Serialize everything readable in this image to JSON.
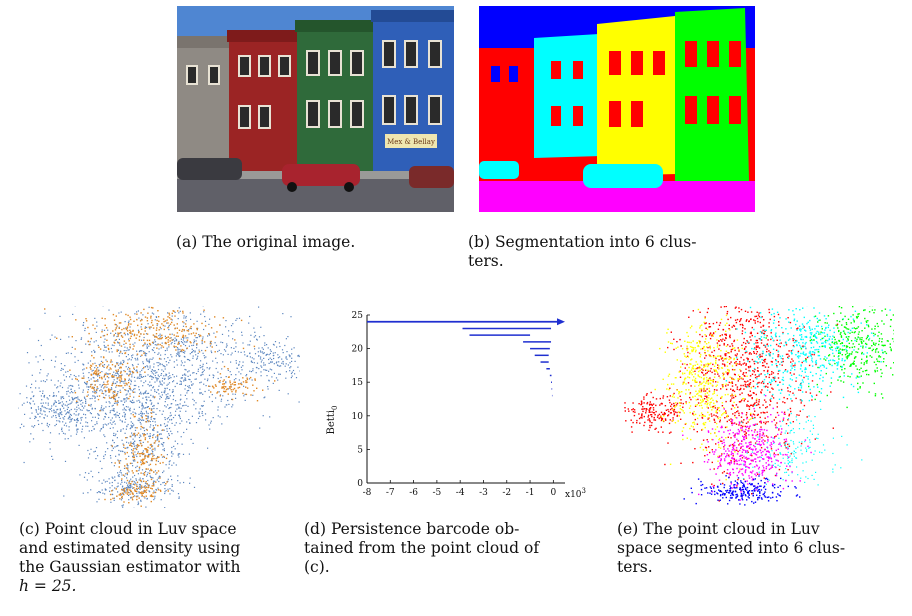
{
  "captions": {
    "a": "(a) The original image.",
    "b_line1": "(b) Segmentation into 6 clus-",
    "b_line2": "ters.",
    "c_lines": [
      "(c) Point cloud in Luv space",
      "and estimated density using",
      "the Gaussian estimator with"
    ],
    "c_math": "h = 25.",
    "d_lines": [
      "(d) Persistence barcode ob-",
      "tained from the point cloud of",
      "(c)."
    ],
    "e_lines": [
      "(e) The point cloud in Luv",
      "space segmented into 6 clus-",
      "ters."
    ]
  },
  "photo": {
    "sign_text": "Mex & Bellay"
  },
  "colors": {
    "cloud_blue": "#5b86bf",
    "cloud_orange": "#e08a28",
    "barcode": "#1f2fd0",
    "seg_red": "#ff0000",
    "seg_cyan": "#00ffff",
    "seg_yellow": "#ffff00",
    "seg_green": "#00ff00",
    "seg_magenta": "#ff00ff",
    "seg_blue": "#0000ff"
  },
  "chart_data": {
    "type": "bar",
    "orientation": "horizontal",
    "ylabel": "Betti",
    "ylabel_sub": "0",
    "xunit": "x10",
    "xunit_exp": "3",
    "xlim": [
      -8,
      0.5
    ],
    "ylim": [
      0,
      25
    ],
    "xticks": [
      "-8",
      "-7",
      "-6",
      "-5",
      "-4",
      "-3",
      "-2",
      "-1",
      "0"
    ],
    "yticks": [
      "0",
      "5",
      "10",
      "15",
      "20",
      "25"
    ],
    "bars": [
      {
        "index": 24,
        "start": -8.0,
        "end": 0.5,
        "infinite": true
      },
      {
        "index": 23,
        "start": -3.9,
        "end": -0.1
      },
      {
        "index": 22,
        "start": -3.6,
        "end": -1.0
      },
      {
        "index": 21,
        "start": -1.3,
        "end": -0.1
      },
      {
        "index": 20,
        "start": -1.0,
        "end": -0.15
      },
      {
        "index": 19,
        "start": -0.8,
        "end": -0.2
      },
      {
        "index": 18,
        "start": -0.55,
        "end": -0.2
      },
      {
        "index": 17,
        "start": -0.3,
        "end": -0.15
      },
      {
        "index": 16,
        "start": -0.15,
        "end": -0.08
      },
      {
        "index": 15,
        "start": -0.1,
        "end": -0.06
      },
      {
        "index": 14,
        "start": -0.08,
        "end": -0.05
      },
      {
        "index": 13,
        "start": -0.06,
        "end": -0.04
      }
    ]
  }
}
